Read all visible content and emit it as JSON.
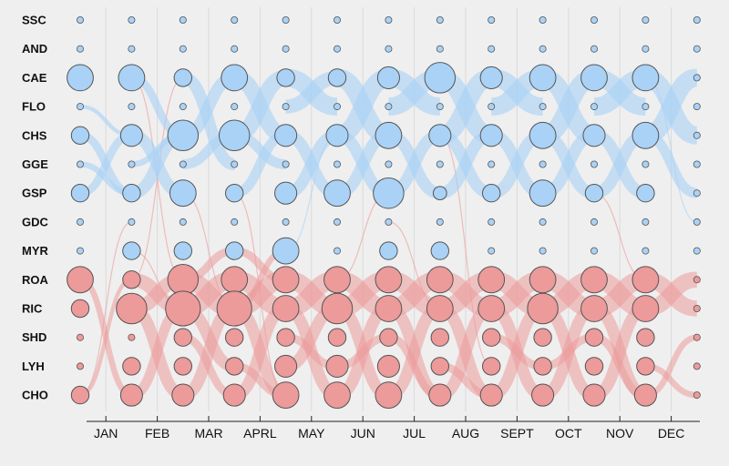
{
  "chart_data": {
    "type": "flow-bubble",
    "title": "",
    "rows": [
      "SSC",
      "AND",
      "CAE",
      "FLO",
      "CHS",
      "GGE",
      "GSP",
      "GDC",
      "MYR",
      "ROA",
      "RIC",
      "SHD",
      "LYH",
      "CHO"
    ],
    "months": [
      "JAN",
      "FEB",
      "MAR",
      "APRL",
      "MAY",
      "JUN",
      "JUL",
      "AUG",
      "SEPT",
      "OCT",
      "NOV",
      "DEC"
    ],
    "groups": {
      "blue": [
        "SSC",
        "AND",
        "CAE",
        "FLO",
        "CHS",
        "GGE",
        "GSP",
        "GDC",
        "MYR"
      ],
      "red": [
        "ROA",
        "RIC",
        "SHD",
        "LYH",
        "CHO"
      ]
    },
    "colors": {
      "blue_fill": "#a9d2f6",
      "blue_flow": "#a9d2f6",
      "red_fill": "#ec9a9a",
      "red_flow": "#ec9a9a",
      "bubble_stroke": "#555555",
      "background": "#efefef"
    },
    "sizes": {
      "SSC": [
        1,
        1,
        1,
        1,
        1,
        1,
        1,
        1,
        1,
        1,
        1,
        1,
        1
      ],
      "AND": [
        1,
        1,
        1,
        1,
        1,
        1,
        1,
        1,
        1,
        1,
        1,
        1,
        1
      ],
      "CAE": [
        5,
        5,
        3,
        5,
        3,
        3,
        4,
        6,
        4,
        5,
        5,
        5,
        1
      ],
      "FLO": [
        1,
        1,
        1,
        1,
        1,
        1,
        1,
        1,
        1,
        1,
        1,
        1,
        1
      ],
      "CHS": [
        3,
        4,
        6,
        6,
        4,
        4,
        5,
        4,
        4,
        5,
        4,
        5,
        1
      ],
      "GGE": [
        1,
        1,
        1,
        1,
        1,
        1,
        1,
        1,
        1,
        1,
        1,
        1,
        1
      ],
      "GSP": [
        3,
        3,
        5,
        3,
        4,
        5,
        6,
        2,
        3,
        5,
        3,
        3,
        1
      ],
      "GDC": [
        1,
        1,
        1,
        1,
        1,
        1,
        1,
        1,
        1,
        1,
        1,
        1,
        1
      ],
      "MYR": [
        1,
        3,
        3,
        3,
        5,
        1,
        3,
        3,
        1,
        1,
        1,
        1,
        1
      ],
      "ROA": [
        5,
        3,
        6,
        5,
        5,
        5,
        5,
        5,
        5,
        5,
        5,
        5,
        1
      ],
      "RIC": [
        3,
        6,
        7,
        7,
        5,
        6,
        5,
        5,
        5,
        6,
        5,
        5,
        1
      ],
      "SHD": [
        1,
        1,
        3,
        3,
        3,
        3,
        3,
        3,
        3,
        3,
        3,
        3,
        1
      ],
      "LYH": [
        1,
        3,
        3,
        3,
        4,
        4,
        4,
        3,
        3,
        3,
        3,
        3,
        1
      ],
      "CHO": [
        3,
        4,
        4,
        4,
        5,
        5,
        5,
        4,
        4,
        4,
        4,
        4,
        1
      ]
    },
    "flows": {
      "blue": [
        [
          "CAE",
          "CHS",
          1,
          2,
          4
        ],
        [
          "CAE",
          "GGE",
          2,
          3,
          6
        ],
        [
          "CHS",
          "CAE",
          2,
          3,
          6
        ],
        [
          "CAE",
          "CHS",
          3,
          4,
          8
        ],
        [
          "CHS",
          "CAE",
          3,
          4,
          8
        ],
        [
          "CAE",
          "FLO",
          4,
          5,
          9
        ],
        [
          "FLO",
          "CAE",
          4,
          5,
          7
        ],
        [
          "CAE",
          "CHS",
          5,
          6,
          9
        ],
        [
          "CHS",
          "CAE",
          5,
          6,
          9
        ],
        [
          "CAE",
          "FLO",
          6,
          7,
          9
        ],
        [
          "FLO",
          "CAE",
          6,
          7,
          9
        ],
        [
          "CAE",
          "CHS",
          7,
          8,
          9
        ],
        [
          "CHS",
          "CAE",
          7,
          8,
          9
        ],
        [
          "CAE",
          "FLO",
          8,
          9,
          9
        ],
        [
          "FLO",
          "CAE",
          8,
          9,
          9
        ],
        [
          "CAE",
          "CHS",
          9,
          10,
          9
        ],
        [
          "CHS",
          "CAE",
          9,
          10,
          9
        ],
        [
          "CAE",
          "FLO",
          10,
          11,
          9
        ],
        [
          "FLO",
          "CAE",
          10,
          11,
          9
        ],
        [
          "CAE",
          "CHS",
          11,
          12,
          9
        ],
        [
          "CHS",
          "CAE",
          11,
          12,
          9
        ],
        [
          "CHS",
          "GSP",
          0,
          1,
          4
        ],
        [
          "GSP",
          "CHS",
          0,
          1,
          4
        ],
        [
          "CHS",
          "GSP",
          1,
          2,
          6
        ],
        [
          "GSP",
          "CHS",
          1,
          2,
          6
        ],
        [
          "GGE",
          "CHS",
          2,
          3,
          5
        ],
        [
          "CHS",
          "GGE",
          3,
          4,
          5
        ],
        [
          "GSP",
          "CHS",
          3,
          4,
          5
        ],
        [
          "CHS",
          "GSP",
          4,
          5,
          6
        ],
        [
          "GSP",
          "CHS",
          4,
          5,
          6
        ],
        [
          "CHS",
          "GSP",
          5,
          6,
          6
        ],
        [
          "GSP",
          "CHS",
          5,
          6,
          6
        ],
        [
          "CHS",
          "GSP",
          6,
          7,
          6
        ],
        [
          "GSP",
          "CHS",
          6,
          7,
          6
        ],
        [
          "CHS",
          "GSP",
          7,
          8,
          6
        ],
        [
          "GSP",
          "CHS",
          7,
          8,
          6
        ],
        [
          "CHS",
          "GSP",
          8,
          9,
          6
        ],
        [
          "GSP",
          "CHS",
          8,
          9,
          6
        ],
        [
          "CHS",
          "GSP",
          9,
          10,
          6
        ],
        [
          "GSP",
          "CHS",
          9,
          10,
          6
        ],
        [
          "CHS",
          "GSP",
          10,
          11,
          6
        ],
        [
          "GSP",
          "CHS",
          10,
          11,
          6
        ],
        [
          "CHS",
          "GSP",
          11,
          12,
          5
        ],
        [
          "FLO",
          "CHS",
          0,
          1,
          2
        ],
        [
          "GGE",
          "GSP",
          0,
          1,
          3
        ],
        [
          "GGE",
          "CHS",
          1,
          2,
          3
        ]
      ],
      "red": [
        [
          "ROA",
          "RIC",
          1,
          2,
          7
        ],
        [
          "RIC",
          "ROA",
          1,
          2,
          7
        ],
        [
          "ROA",
          "RIC",
          2,
          3,
          9
        ],
        [
          "RIC",
          "ROA",
          2,
          3,
          9
        ],
        [
          "ROA",
          "RIC",
          3,
          4,
          9
        ],
        [
          "RIC",
          "ROA",
          3,
          4,
          9
        ],
        [
          "ROA",
          "RIC",
          4,
          5,
          9
        ],
        [
          "RIC",
          "ROA",
          4,
          5,
          9
        ],
        [
          "ROA",
          "RIC",
          5,
          6,
          9
        ],
        [
          "RIC",
          "ROA",
          5,
          6,
          9
        ],
        [
          "ROA",
          "RIC",
          6,
          7,
          9
        ],
        [
          "RIC",
          "ROA",
          6,
          7,
          9
        ],
        [
          "ROA",
          "RIC",
          7,
          8,
          9
        ],
        [
          "RIC",
          "ROA",
          7,
          8,
          9
        ],
        [
          "ROA",
          "RIC",
          8,
          9,
          9
        ],
        [
          "RIC",
          "ROA",
          8,
          9,
          9
        ],
        [
          "ROA",
          "RIC",
          9,
          10,
          9
        ],
        [
          "RIC",
          "ROA",
          9,
          10,
          9
        ],
        [
          "ROA",
          "RIC",
          10,
          11,
          9
        ],
        [
          "RIC",
          "ROA",
          10,
          11,
          9
        ],
        [
          "ROA",
          "RIC",
          11,
          12,
          8
        ],
        [
          "RIC",
          "ROA",
          11,
          12,
          8
        ],
        [
          "RIC",
          "CHO",
          1,
          2,
          6
        ],
        [
          "CHO",
          "RIC",
          1,
          2,
          5
        ],
        [
          "RIC",
          "LYH",
          2,
          3,
          6
        ],
        [
          "CHO",
          "RIC",
          2,
          3,
          6
        ],
        [
          "RIC",
          "CHO",
          3,
          4,
          6
        ],
        [
          "CHO",
          "RIC",
          3,
          4,
          6
        ],
        [
          "RIC",
          "CHO",
          4,
          5,
          6
        ],
        [
          "LYH",
          "RIC",
          4,
          5,
          6
        ],
        [
          "RIC",
          "CHO",
          5,
          6,
          6
        ],
        [
          "CHO",
          "RIC",
          5,
          6,
          6
        ],
        [
          "RIC",
          "CHO",
          6,
          7,
          6
        ],
        [
          "CHO",
          "RIC",
          6,
          7,
          6
        ],
        [
          "RIC",
          "CHO",
          7,
          8,
          6
        ],
        [
          "CHO",
          "RIC",
          7,
          8,
          6
        ],
        [
          "RIC",
          "CHO",
          8,
          9,
          6
        ],
        [
          "CHO",
          "RIC",
          8,
          9,
          6
        ],
        [
          "RIC",
          "CHO",
          9,
          10,
          6
        ],
        [
          "CHO",
          "RIC",
          9,
          10,
          6
        ],
        [
          "RIC",
          "CHO",
          10,
          11,
          6
        ],
        [
          "CHO",
          "RIC",
          10,
          11,
          6
        ],
        [
          "SHD",
          "CHO",
          2,
          3,
          4
        ],
        [
          "LYH",
          "CHO",
          3,
          4,
          4
        ],
        [
          "SHD",
          "LYH",
          4,
          5,
          4
        ],
        [
          "LYH",
          "SHD",
          5,
          6,
          4
        ],
        [
          "SHD",
          "CHO",
          6,
          7,
          4
        ],
        [
          "LYH",
          "CHO",
          7,
          8,
          4
        ],
        [
          "SHD",
          "LYH",
          8,
          9,
          4
        ],
        [
          "LYH",
          "SHD",
          9,
          10,
          4
        ],
        [
          "SHD",
          "CHO",
          10,
          11,
          4
        ],
        [
          "CHO",
          "SHD",
          11,
          12,
          3
        ],
        [
          "LYH",
          "CHO",
          11,
          12,
          3
        ],
        [
          "CHO",
          "ROA",
          0,
          1,
          2
        ],
        [
          "ROA",
          "CHO",
          0,
          1,
          3
        ],
        [
          "ROA",
          "MYR",
          2,
          3,
          4
        ],
        [
          "MYR",
          "ROA",
          3,
          4,
          4
        ],
        [
          "RIC",
          "MYR",
          3,
          4,
          3
        ]
      ],
      "thin": [
        [
          "CAE",
          "ROA",
          1,
          2
        ],
        [
          "GSP",
          "RIC",
          2,
          3
        ],
        [
          "ROA",
          "GSP",
          5,
          6
        ],
        [
          "CHO",
          "GDC",
          0,
          1
        ],
        [
          "GSP",
          "CHO",
          3,
          4
        ],
        [
          "MYR",
          "CHS",
          4,
          5
        ],
        [
          "ROA",
          "CAE",
          1,
          2
        ],
        [
          "GDC",
          "RIC",
          6,
          7
        ],
        [
          "CHS",
          "LYH",
          7,
          8
        ],
        [
          "GSP",
          "ROA",
          10,
          11
        ],
        [
          "MYR",
          "RIC",
          1,
          2
        ],
        [
          "CAE",
          "GDC",
          11,
          12
        ]
      ]
    }
  }
}
